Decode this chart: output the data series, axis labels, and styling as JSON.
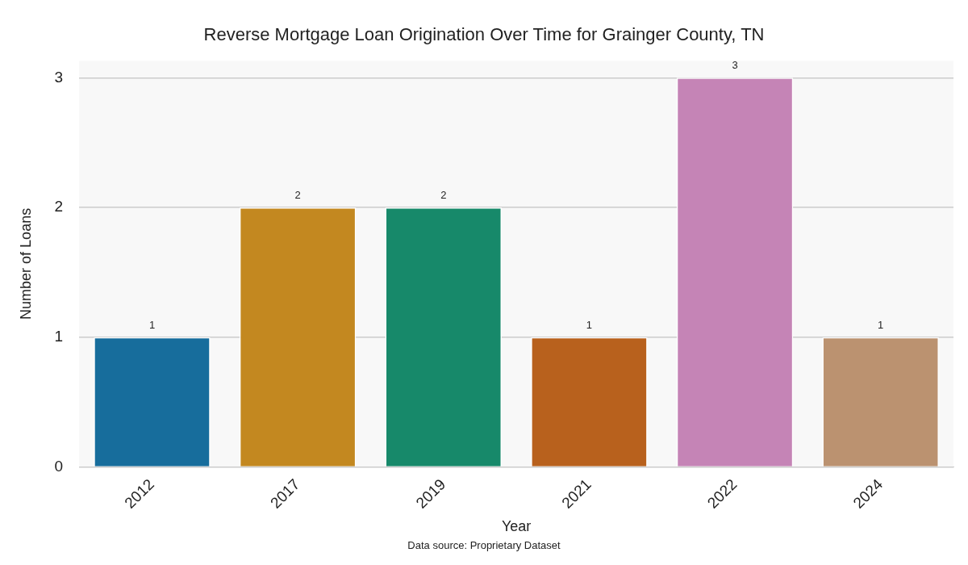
{
  "chart_data": {
    "type": "bar",
    "title": "Reverse Mortgage Loan Origination Over Time for Grainger County, TN",
    "xlabel": "Year",
    "ylabel": "Number of Loans",
    "categories": [
      "2012",
      "2017",
      "2019",
      "2021",
      "2022",
      "2024"
    ],
    "values": [
      1,
      2,
      2,
      1,
      3,
      1
    ],
    "colors": [
      "#176d9c",
      "#c38820",
      "#17896a",
      "#b8611d",
      "#c584b6",
      "#bb9270"
    ],
    "ylim": [
      0,
      3.13
    ],
    "yticks": [
      0,
      1,
      2,
      3
    ],
    "grid": "y",
    "data_labels": true,
    "legend": false,
    "annotations": [
      "Data source: Proprietary Dataset"
    ]
  }
}
